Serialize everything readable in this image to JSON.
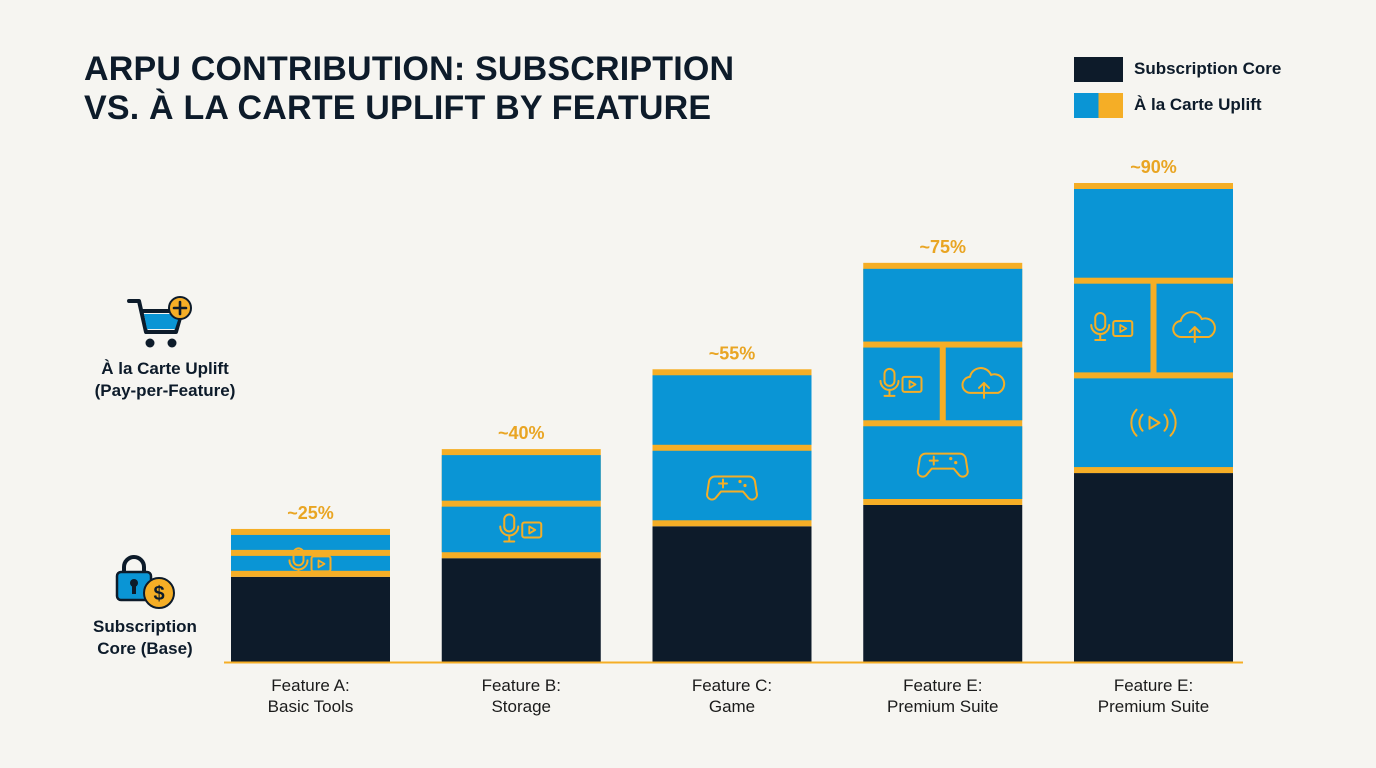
{
  "title": {
    "line1": "ARPU CONTRIBUTION: SUBSCRIPTION",
    "line2": "VS. À LA CARTE UPLIFT BY FEATURE"
  },
  "legend": {
    "core_label": "Subscription Core",
    "uplift_label": "À la Carte Uplift"
  },
  "side_labels": {
    "uplift_line1": "À la Carte Uplift",
    "uplift_line2": "(Pay-per-Feature)",
    "core_line1": "Subscription",
    "core_line2": "Core (Base)"
  },
  "colors": {
    "core": "#0d1b2a",
    "uplift": "#0a95d5",
    "accent": "#f5ae26",
    "percent_text": "#e9a523"
  },
  "chart_data": {
    "type": "bar",
    "stacked": true,
    "categories": [
      [
        "Feature A:",
        "Basic Tools"
      ],
      [
        "Feature B:",
        "Storage"
      ],
      [
        "Feature C:",
        "Game"
      ],
      [
        "Feature E:",
        "Premium Suite"
      ],
      [
        "Feature E:",
        "Premium Suite"
      ]
    ],
    "total_labels": [
      "~25%",
      "~40%",
      "~55%",
      "~75%",
      "~90%"
    ],
    "totals": [
      25,
      40,
      55,
      75,
      90
    ],
    "series": [
      {
        "name": "Subscription Core",
        "values": [
          16,
          19.5,
          25.5,
          29.5,
          35.5
        ]
      },
      {
        "name": "À la Carte Uplift",
        "values": [
          9,
          20.5,
          29.5,
          45.5,
          54.5
        ]
      }
    ],
    "segments": [
      [
        {
          "icon": "mic-video-icon"
        },
        {
          "icon": ""
        }
      ],
      [
        {
          "icon": "mic-video-icon"
        },
        {
          "icon": ""
        }
      ],
      [
        {
          "icon": "gamepad-icon"
        },
        {
          "icon": ""
        }
      ],
      [
        {
          "icon": "gamepad-icon"
        },
        {
          "icons": [
            "mic-video-icon",
            "cloud-upload-icon"
          ]
        },
        {
          "icon": ""
        }
      ],
      [
        {
          "icon": "broadcast-play-icon"
        },
        {
          "icons": [
            "mic-video-icon",
            "cloud-upload-icon"
          ]
        },
        {
          "icon": ""
        }
      ]
    ],
    "ylim": [
      0,
      100
    ],
    "xlabel": "",
    "ylabel": "",
    "grid": false,
    "legend_position": "top-right"
  }
}
